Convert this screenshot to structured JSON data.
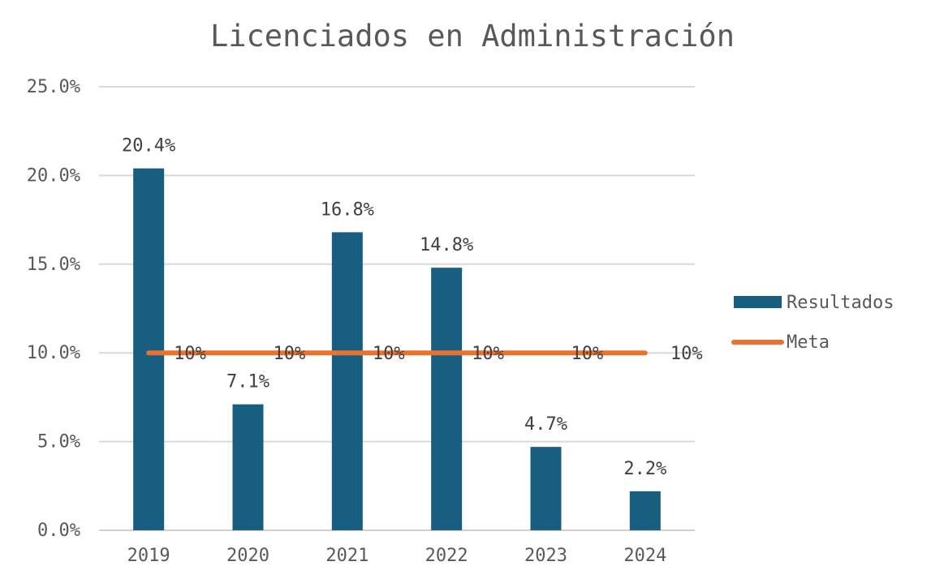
{
  "chart_data": {
    "type": "bar",
    "title": "Licenciados en Administración",
    "categories": [
      "2019",
      "2020",
      "2021",
      "2022",
      "2023",
      "2024"
    ],
    "series": [
      {
        "name": "Resultados",
        "type": "bar",
        "color": "#175E81",
        "values": [
          20.4,
          7.1,
          16.8,
          14.8,
          4.7,
          2.2
        ],
        "labels": [
          "20.4%",
          "7.1%",
          "16.8%",
          "14.8%",
          "4.7%",
          "2.2%"
        ]
      },
      {
        "name": "Meta",
        "type": "line",
        "color": "#E9722E",
        "values": [
          10,
          10,
          10,
          10,
          10,
          10
        ],
        "labels": [
          "10%",
          "10%",
          "10%",
          "10%",
          "10%",
          "10%"
        ]
      }
    ],
    "ylim": [
      0,
      25
    ],
    "yticks": [
      "0.0%",
      "5.0%",
      "10.0%",
      "15.0%",
      "20.0%",
      "25.0%"
    ],
    "grid": true,
    "legend": "right"
  }
}
